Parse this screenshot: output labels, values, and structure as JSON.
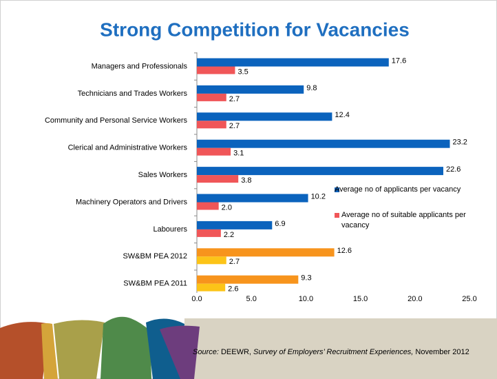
{
  "chart_data": {
    "type": "hbar",
    "title": "Strong Competition for Vacancies",
    "categories": [
      "Managers and Professionals",
      "Technicians and Trades Workers",
      "Community and Personal Service Workers",
      "Clerical and Administrative Workers",
      "Sales Workers",
      "Machinery Operators and Drivers",
      "Labourers",
      "SW&BM PEA 2012",
      "SW&BM PEA 2011"
    ],
    "series": [
      {
        "name": "Average no of applicants per vacancy",
        "color": "#0b63bd",
        "colors": [
          "#0b63bd",
          "#0b63bd",
          "#0b63bd",
          "#0b63bd",
          "#0b63bd",
          "#0b63bd",
          "#0b63bd",
          "#f7941d",
          "#f7941d"
        ],
        "values": [
          17.6,
          9.8,
          12.4,
          23.2,
          22.6,
          10.2,
          6.9,
          12.6,
          9.3
        ],
        "value_labels": [
          "17.6",
          "9.8",
          "12.4",
          "23.2",
          "22.6",
          "10.2",
          "6.9",
          "12.6",
          "9.3"
        ]
      },
      {
        "name": "Average no of suitable applicants per vacancy",
        "color": "#f05658",
        "colors": [
          "#f05658",
          "#f05658",
          "#f05658",
          "#f05658",
          "#f05658",
          "#f05658",
          "#f05658",
          "#fcc418",
          "#fcc418"
        ],
        "values": [
          3.5,
          2.7,
          2.7,
          3.1,
          3.8,
          2.0,
          2.2,
          2.7,
          2.6
        ],
        "value_labels": [
          "3.5",
          "2.7",
          "2.7",
          "3.1",
          "3.8",
          "2.0",
          "2.2",
          "2.7",
          "2.6"
        ]
      }
    ],
    "xlim": [
      0,
      25
    ],
    "xticks": [
      {
        "value": 0,
        "label": "0.0"
      },
      {
        "value": 5,
        "label": "5.0"
      },
      {
        "value": 10,
        "label": "10.0"
      },
      {
        "value": 15,
        "label": "15.0"
      },
      {
        "value": 20,
        "label": "20.0"
      },
      {
        "value": 25,
        "label": "25.0"
      }
    ],
    "grid": false,
    "legend": "right",
    "source": [
      "Source:",
      " DEEWR, ",
      "Survey of Employers’ Recruitment Experiences,",
      " November 2012"
    ]
  }
}
